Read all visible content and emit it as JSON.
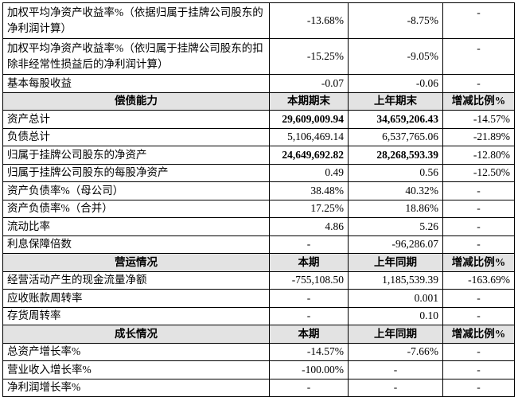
{
  "table": {
    "top_rows": [
      [
        "加权平均净资产收益率%（依据归属于挂牌公司股东的净利润计算）",
        "-13.68%",
        "-8.75%",
        "-"
      ],
      [
        "加权平均净资产收益率%（依归属于挂牌公司股东的扣除非经常性损益后的净利润计算）",
        "-15.25%",
        "-9.05%",
        "-"
      ],
      [
        "基本每股收益",
        "-0.07",
        "-0.06",
        "-"
      ]
    ],
    "sections": [
      {
        "header": [
          "偿债能力",
          "本期期末",
          "上年期末",
          "增减比例%"
        ],
        "rows": [
          [
            "资产总计",
            "29,609,009.94",
            "34,659,206.43",
            "-14.57%"
          ],
          [
            "负债总计",
            "5,106,469.14",
            "6,537,765.06",
            "-21.89%"
          ],
          [
            "归属于挂牌公司股东的净资产",
            "24,649,692.82",
            "28,268,593.39",
            "-12.80%"
          ],
          [
            "归属于挂牌公司股东的每股净资产",
            "0.49",
            "0.56",
            "-12.50%"
          ],
          [
            "资产负债率%（母公司）",
            "38.48%",
            "40.32%",
            "-"
          ],
          [
            "资产负债率%（合并）",
            "17.25%",
            "18.86%",
            "-"
          ],
          [
            "流动比率",
            "4.86",
            "5.26",
            "-"
          ],
          [
            "利息保障倍数",
            "-",
            "-96,286.07",
            "-"
          ]
        ]
      },
      {
        "header": [
          "营运情况",
          "本期",
          "上年同期",
          "增减比例%"
        ],
        "rows": [
          [
            "经营活动产生的现金流量净额",
            "-755,108.50",
            "1,185,539.39",
            "-163.69%"
          ],
          [
            "应收账款周转率",
            "-",
            "0.001",
            "-"
          ],
          [
            "存货周转率",
            "-",
            "0.10",
            "-"
          ]
        ]
      },
      {
        "header": [
          "成长情况",
          "本期",
          "上年同期",
          "增减比例%"
        ],
        "rows": [
          [
            "总资产增长率%",
            "-14.57%",
            "-7.66%",
            "-"
          ],
          [
            "营业收入增长率%",
            "-100.00%",
            "-",
            "-"
          ],
          [
            "净利润增长率%",
            "-",
            "-",
            "-"
          ]
        ]
      }
    ]
  }
}
